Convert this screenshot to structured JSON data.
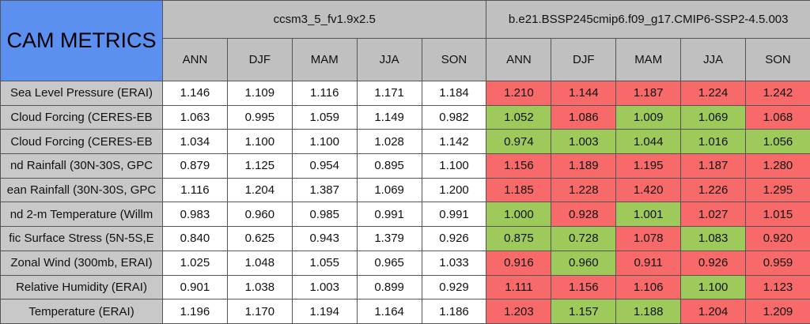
{
  "header": {
    "title": "CAM METRICS",
    "groups": [
      "ccsm3_5_fv1.9x2.5",
      "b.e21.BSSP245cmip6.f09_g17.CMIP6-SSP2-4.5.003"
    ],
    "seasons": [
      "ANN",
      "DJF",
      "MAM",
      "JJA",
      "SON",
      "ANN",
      "DJF",
      "MAM",
      "JJA",
      "SON"
    ]
  },
  "colors": {
    "title": "#5b8ff0",
    "header": "#c0c0c0",
    "label": "#c8c8c8",
    "plain": "#ffffff",
    "worse": "#f86a6a",
    "better": "#9dca5b"
  },
  "table": {
    "rows": [
      {
        "label": "Sea Level Pressure (ERAI)",
        "values": [
          "1.146",
          "1.109",
          "1.116",
          "1.171",
          "1.184",
          "1.210",
          "1.144",
          "1.187",
          "1.224",
          "1.242"
        ],
        "marks": [
          "worse",
          "worse",
          "worse",
          "worse",
          "worse"
        ]
      },
      {
        "label": "Cloud Forcing (CERES-EB",
        "values": [
          "1.063",
          "0.995",
          "1.059",
          "1.149",
          "0.982",
          "1.052",
          "1.086",
          "1.009",
          "1.069",
          "1.068"
        ],
        "marks": [
          "better",
          "worse",
          "better",
          "better",
          "worse"
        ]
      },
      {
        "label": "Cloud Forcing (CERES-EB",
        "values": [
          "1.034",
          "1.100",
          "1.100",
          "1.028",
          "1.142",
          "0.974",
          "1.003",
          "1.044",
          "1.016",
          "1.056"
        ],
        "marks": [
          "better",
          "better",
          "better",
          "better",
          "better"
        ]
      },
      {
        "label": "nd Rainfall (30N-30S, GPC",
        "values": [
          "0.879",
          "1.125",
          "0.954",
          "0.895",
          "1.100",
          "1.156",
          "1.189",
          "1.195",
          "1.187",
          "1.280"
        ],
        "marks": [
          "worse",
          "worse",
          "worse",
          "worse",
          "worse"
        ]
      },
      {
        "label": "ean Rainfall (30N-30S, GPC",
        "values": [
          "1.116",
          "1.204",
          "1.387",
          "1.069",
          "1.200",
          "1.185",
          "1.228",
          "1.420",
          "1.226",
          "1.295"
        ],
        "marks": [
          "worse",
          "worse",
          "worse",
          "worse",
          "worse"
        ]
      },
      {
        "label": "nd 2-m Temperature (Willm",
        "values": [
          "0.983",
          "0.960",
          "0.985",
          "0.991",
          "0.991",
          "1.000",
          "0.928",
          "1.001",
          "1.027",
          "1.015"
        ],
        "marks": [
          "better",
          "worse",
          "better",
          "worse",
          "worse"
        ]
      },
      {
        "label": "fic Surface Stress (5N-5S,E",
        "values": [
          "0.840",
          "0.625",
          "0.943",
          "1.379",
          "0.926",
          "0.875",
          "0.728",
          "1.078",
          "1.083",
          "0.920"
        ],
        "marks": [
          "better",
          "better",
          "worse",
          "better",
          "worse"
        ]
      },
      {
        "label": "Zonal Wind (300mb, ERAI)",
        "values": [
          "1.025",
          "1.048",
          "1.055",
          "0.965",
          "1.033",
          "0.916",
          "0.960",
          "0.911",
          "0.926",
          "0.959"
        ],
        "marks": [
          "worse",
          "better",
          "worse",
          "worse",
          "worse"
        ]
      },
      {
        "label": "Relative Humidity (ERAI)",
        "values": [
          "0.901",
          "1.038",
          "1.003",
          "0.899",
          "0.929",
          "1.111",
          "1.156",
          "1.106",
          "1.100",
          "1.123"
        ],
        "marks": [
          "worse",
          "worse",
          "worse",
          "better",
          "worse"
        ]
      },
      {
        "label": "Temperature (ERAI)",
        "values": [
          "1.196",
          "1.170",
          "1.194",
          "1.164",
          "1.186",
          "1.203",
          "1.157",
          "1.188",
          "1.204",
          "1.209"
        ],
        "marks": [
          "worse",
          "better",
          "better",
          "worse",
          "worse"
        ]
      }
    ]
  }
}
